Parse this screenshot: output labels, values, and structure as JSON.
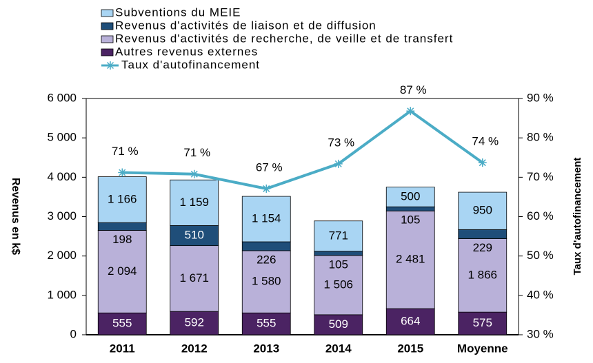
{
  "chart_data": {
    "type": "bar",
    "stacked": true,
    "categories": [
      "2011",
      "2012",
      "2013",
      "2014",
      "2015",
      "Moyenne"
    ],
    "ylabel": "Revenus en k$",
    "y2label": "Taux d'autofinancement",
    "ylim": [
      0,
      6000
    ],
    "yticks": [
      0,
      {
        "value": 1000,
        "label": "1 000"
      },
      {
        "value": 2000,
        "label": "2 000"
      },
      {
        "value": 3000,
        "label": "3 000"
      },
      {
        "value": 4000,
        "label": "4 000"
      },
      {
        "value": 5000,
        "label": "5 000"
      },
      {
        "value": 6000,
        "label": "6 000"
      }
    ],
    "y2lim": [
      30,
      90
    ],
    "y2ticks": [
      {
        "value": 30,
        "label": "30 %"
      },
      {
        "value": 40,
        "label": "40 %"
      },
      {
        "value": 50,
        "label": "50 %"
      },
      {
        "value": 60,
        "label": "60 %"
      },
      {
        "value": 70,
        "label": "70 %"
      },
      {
        "value": 80,
        "label": "80 %"
      },
      {
        "value": 90,
        "label": "90 %"
      }
    ],
    "series": [
      {
        "name": "Autres revenus externes",
        "color": "#4b2363",
        "values": [
          555,
          592,
          555,
          509,
          664,
          575
        ]
      },
      {
        "name": "Revenus d'activités de recherche, de veille et de transfert",
        "color": "#b9b1d9",
        "values": [
          2094,
          1671,
          1580,
          1506,
          2481,
          1866
        ],
        "value_labels": [
          "2 094",
          "1 671",
          "1 580",
          "1 506",
          "2 481",
          "1 866"
        ]
      },
      {
        "name": "Revenus d'activités de liaison et de diffusion",
        "color": "#1f4e79",
        "values": [
          198,
          510,
          226,
          105,
          105,
          229
        ]
      },
      {
        "name": "Subventions du MEIE",
        "color": "#a9d5f3",
        "values": [
          1166,
          1159,
          1154,
          771,
          500,
          950
        ],
        "value_labels": [
          "1 166",
          "1 159",
          "1 154",
          "771",
          "500",
          "950"
        ]
      },
      {
        "name": "Taux d'autofinancement",
        "type": "line",
        "axis": "y2",
        "color": "#4bacc6",
        "values": [
          71.2,
          70.8,
          67.1,
          73.4,
          86.8,
          73.7
        ],
        "value_labels": [
          "71 %",
          "71 %",
          "67 %",
          "73 %",
          "87 %",
          "74 %"
        ]
      }
    ]
  }
}
